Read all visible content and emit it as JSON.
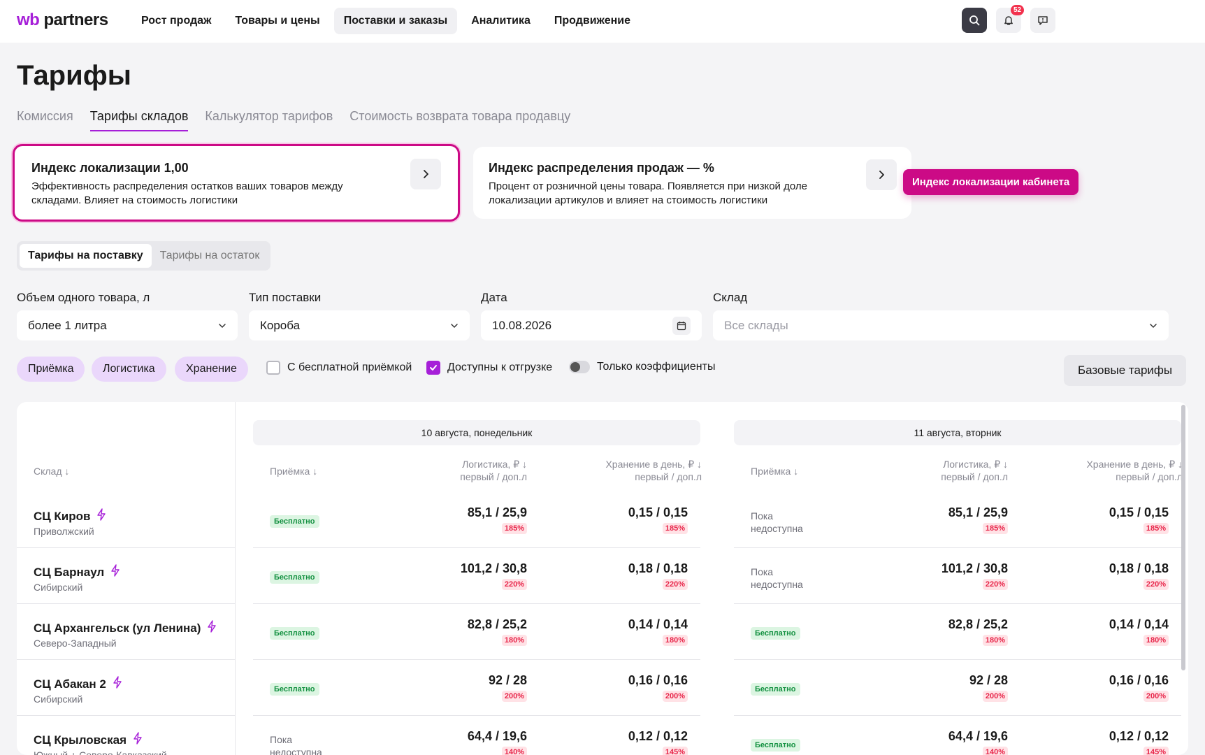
{
  "logo": {
    "wb": "wb",
    "partners": "partners"
  },
  "nav": [
    "Рост продаж",
    "Товары и цены",
    "Поставки и заказы",
    "Аналитика",
    "Продвижение"
  ],
  "notifications_count": "52",
  "page_title": "Тарифы",
  "tabs": [
    "Комиссия",
    "Тарифы складов",
    "Калькулятор тарифов",
    "Стоимость возврата товара продавцу"
  ],
  "card_loc": {
    "title": "Индекс локализации 1,00",
    "text": "Эффективность распределения остатков ваших товаров между складами. Влияет на стоимость логистики"
  },
  "card_dist": {
    "title": "Индекс распределения продаж — %",
    "text": "Процент от розничной цены товара. Появляется при низкой доле локализации артикулов и влияет на стоимость логистики"
  },
  "tooltip_button": "Индекс локализации кабинета",
  "segment": [
    "Тарифы на поставку",
    "Тарифы на остаток"
  ],
  "filters": {
    "volume_label": "Объем одного товара, л",
    "volume_value": "более 1 литра",
    "type_label": "Тип поставки",
    "type_value": "Короба",
    "date_label": "Дата",
    "date_value": "10.08.2026",
    "wh_label": "Склад",
    "wh_placeholder": "Все склады"
  },
  "chips": [
    "Приёмка",
    "Логистика",
    "Хранение"
  ],
  "options": {
    "free": "С бесплатной приёмкой",
    "available": "Доступны к отгрузке",
    "coef": "Только коэффициенты"
  },
  "base_button": "Базовые тарифы",
  "table": {
    "wh_header": "Склад",
    "days": [
      "10 августа, понедельник",
      "11 августа, вторник"
    ],
    "col_accept": "Приёмка",
    "col_log_1": "Логистика, ₽",
    "col_log_2": "первый / доп.л",
    "col_store_1": "Хранение в день, ₽",
    "col_store_2": "первый / доп.л",
    "free_label": "Бесплатно",
    "na_1": "Пока",
    "na_2": "недоступна",
    "rows": [
      {
        "name": "СЦ Киров",
        "region": "Приволжский",
        "d1_accept": "free",
        "d2_accept": "na",
        "log": "85,1 / 25,9",
        "log_pct": "185%",
        "st": "0,15 / 0,15",
        "st_pct": "185%"
      },
      {
        "name": "СЦ Барнаул",
        "region": "Сибирский",
        "d1_accept": "free",
        "d2_accept": "na",
        "log": "101,2 / 30,8",
        "log_pct": "220%",
        "st": "0,18 / 0,18",
        "st_pct": "220%"
      },
      {
        "name": "СЦ Архангельск (ул Ленина)",
        "region": "Северо-Западный",
        "d1_accept": "free",
        "d2_accept": "free",
        "log": "82,8 / 25,2",
        "log_pct": "180%",
        "st": "0,14 / 0,14",
        "st_pct": "180%"
      },
      {
        "name": "СЦ Абакан 2",
        "region": "Сибирский",
        "d1_accept": "free",
        "d2_accept": "free",
        "log": "92 / 28",
        "log_pct": "200%",
        "st": "0,16 / 0,16",
        "st_pct": "200%"
      },
      {
        "name": "СЦ Крыловская",
        "region": "Южный + Северо-Кавказский",
        "d1_accept": "na",
        "d2_accept": "free",
        "log": "64,4 / 19,6",
        "log_pct": "140%",
        "st": "0,12 / 0,12",
        "st_pct": "145%"
      }
    ]
  }
}
